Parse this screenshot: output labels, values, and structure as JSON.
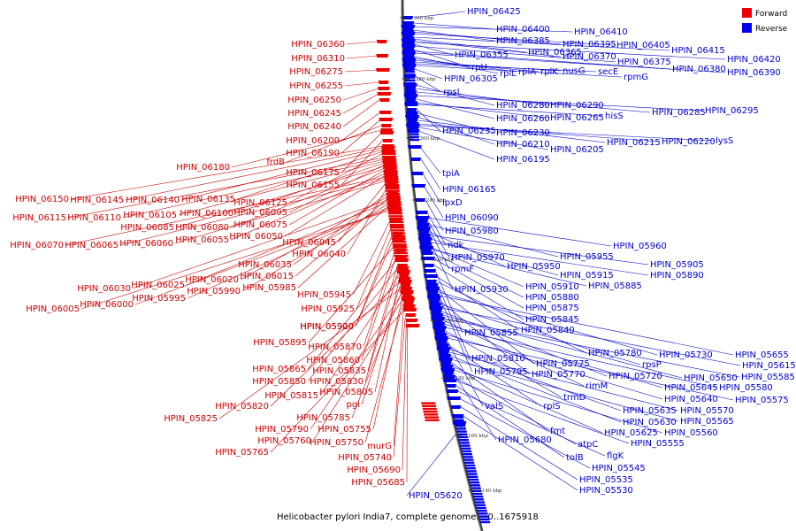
{
  "caption": "Helicobacter pylori India7, complete genome. - 0..1675918",
  "legend": [
    {
      "label": "Forward",
      "color": "#ee0000"
    },
    {
      "label": "Reverse",
      "color": "#0000ee"
    }
  ],
  "ticks": [
    "1300 kbp",
    "1280 kbp",
    "1260 kbp",
    "1240 kbp",
    "1220 kbp",
    "1200 kbp",
    "1180 kbp",
    "1160 kbp",
    "1140 kbp"
  ],
  "forward_labels": [
    "HPIN_06360",
    "HPIN_06310",
    "HPIN_06275",
    "HPIN_06255",
    "HPIN_06250",
    "HPIN_06245",
    "HPIN_06240",
    "HPIN_06200",
    "HPIN_06190",
    "frdB",
    "HPIN_06180",
    "HPIN_06175",
    "HPIN_06155",
    "HPIN_06150",
    "HPIN_06145",
    "HPIN_06140",
    "HPIN_06135",
    "HPIN_06125",
    "HPIN_06115",
    "HPIN_06110",
    "HPIN_06105",
    "HPIN_06100",
    "HPIN_06095",
    "HPIN_06085",
    "HPIN_06080",
    "HPIN_06075",
    "HPIN_06055",
    "HPIN_06050",
    "HPIN_06070",
    "HPIN_06065",
    "HPIN_06060",
    "HPIN_06045",
    "HPIN_06040",
    "HPIN_06035",
    "HPIN_06020",
    "HPIN_06015",
    "HPIN_06030",
    "HPIN_06025",
    "HPIN_05990",
    "HPIN_05985",
    "HPIN_05995",
    "HPIN_06005",
    "HPIN_06000",
    "HPIN_05945",
    "HPIN_05925",
    "HPIN_05920",
    "HPIN_05900",
    "HPIN_05895",
    "HPIN_05870",
    "HPIN_05860",
    "HPIN_05865",
    "HPIN_05835",
    "HPIN_05850",
    "HPIN_05830",
    "HPIN_05815",
    "HPIN_05805",
    "HPIN_05820",
    "pgi",
    "HPIN_05825",
    "HPIN_05785",
    "HPIN_05790",
    "HPIN_05755",
    "HPIN_05760",
    "HPIN_05750",
    "murG",
    "HPIN_05765",
    "HPIN_05740",
    "HPIN_05690",
    "HPIN_05685"
  ],
  "reverse_labels": [
    "HPIN_06425",
    "HPIN_06400",
    "HPIN_06410",
    "HPIN_06385",
    "HPIN_06395",
    "HPIN_06405",
    "HPIN_06415",
    "HPIN_06365",
    "HPIN_06370",
    "HPIN_06420",
    "HPIN_06355",
    "HPIN_06375",
    "rpU",
    "HPIN_06380",
    "HPIN_06390",
    "rplL",
    "rplA",
    "rplK",
    "nusG",
    "secE",
    "rpmG",
    "HPIN_06305",
    "rpsL",
    "HPIN_06280",
    "HPIN_06290",
    "HPIN_06285",
    "HPIN_06295",
    "HPIN_06260",
    "HPIN_06265",
    "hisS",
    "HPIN_06235",
    "HPIN_06230",
    "HPIN_06210",
    "HPIN_06215",
    "HPIN_06220",
    "lysS",
    "HPIN_06205",
    "HPIN_06195",
    "tpiA",
    "HPIN_06165",
    "lpxD",
    "HPIN_06090",
    "HPIN_05980",
    "ndk",
    "HPIN_05960",
    "HPIN_05970",
    "HPIN_05955",
    "rpmF",
    "HPIN_05950",
    "HPIN_05905",
    "HPIN_05915",
    "HPIN_05890",
    "HPIN_05930",
    "HPIN_05910",
    "HPIN_05885",
    "HPIN_05880",
    "HPIN_05875",
    "HPIN_05845",
    "HPIN_05855",
    "HPIN_05840",
    "HPIN_05780",
    "HPIN_05810",
    "HPIN_05775",
    "HPIN_05730",
    "HPIN_05655",
    "HPIN_05795",
    "HPIN_05770",
    "rpsP",
    "HPIN_05615",
    "HPIN_05720",
    "HPIN_05650",
    "HPIN_05585",
    "rimM",
    "HPIN_05645",
    "HPIN_05580",
    "trmD",
    "HPIN_05640",
    "HPIN_05575",
    "valS",
    "rplS",
    "HPIN_05635",
    "HPIN_05570",
    "HPIN_05630",
    "HPIN_05565",
    "fmt",
    "HPIN_05625",
    "HPIN_05560",
    "HPIN_05680",
    "atpC",
    "HPIN_05555",
    "tolB",
    "flgK",
    "HPIN_05545",
    "HPIN_05535",
    "HPIN_05530",
    "HPIN_05620"
  ]
}
